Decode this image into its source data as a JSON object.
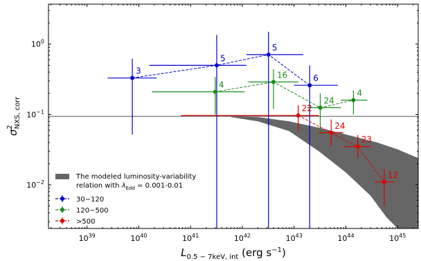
{
  "chart_data": {
    "type": "scatter",
    "xlabel": "L",
    "xlabel_subscript": "0.5 − 7keV, int",
    "xlabel_unit": " (erg s",
    "xlabel_unit_sup": "−1",
    "xlabel_unit_end": ")",
    "ylabel": "σ",
    "ylabel_sup": "2",
    "ylabel_sub": "NXS, corr",
    "x_log": true,
    "y_log": true,
    "xlim": [
      1.8e+38,
      2.5e+45
    ],
    "ylim": [
      0.0024,
      3.7
    ],
    "x_tick_labels": [
      {
        "value": 1e+39,
        "base": "10",
        "exp": "39"
      },
      {
        "value": 1e+40,
        "base": "10",
        "exp": "40"
      },
      {
        "value": 1e+41,
        "base": "10",
        "exp": "41"
      },
      {
        "value": 1e+42,
        "base": "10",
        "exp": "42"
      },
      {
        "value": 1e+43,
        "base": "10",
        "exp": "43"
      },
      {
        "value": 1e+44,
        "base": "10",
        "exp": "44"
      },
      {
        "value": 1e+45,
        "base": "10",
        "exp": "45"
      }
    ],
    "y_tick_labels": [
      {
        "value": 0.01,
        "base": "10",
        "exp": "−2"
      },
      {
        "value": 0.1,
        "base": "10",
        "exp": "−1"
      },
      {
        "value": 1,
        "base": "10",
        "exp": "0"
      }
    ],
    "reference_line": {
      "y": 0.094,
      "color": "#555555"
    },
    "model_band": {
      "label_line1": "The modeled luminosity-variability",
      "label_line2_prefix": "relation with ",
      "label_line2_lambda": "λ",
      "label_line2_sub": "Edd",
      "label_line2_suffix": " = 0.001-0.01",
      "color": "#666666",
      "upper": [
        [
          6e+41,
          0.094
        ],
        [
          2e+42,
          0.092
        ],
        [
          8e+42,
          0.08
        ],
        [
          3e+43,
          0.065
        ],
        [
          1e+44,
          0.052
        ],
        [
          4e+44,
          0.04
        ],
        [
          1e+45,
          0.032
        ],
        [
          2.5e+45,
          0.024
        ]
      ],
      "lower": [
        [
          2.5e+45,
          0.0024
        ],
        [
          1e+45,
          0.0024
        ],
        [
          6e+44,
          0.0035
        ],
        [
          3e+44,
          0.007
        ],
        [
          1e+44,
          0.015
        ],
        [
          3e+43,
          0.03
        ],
        [
          8e+42,
          0.058
        ],
        [
          2e+42,
          0.08
        ],
        [
          6e+41,
          0.092
        ]
      ]
    },
    "series": [
      {
        "name": "30−120",
        "color": "#0000cc",
        "points": [
          {
            "x": 7.5e+39,
            "y": 0.33,
            "xlo": 2.5e+39,
            "xhi": 2.2e+40,
            "ylo": 0.052,
            "yhi": 0.62,
            "label": "3"
          },
          {
            "x": 3.2e+41,
            "y": 0.5,
            "xlo": 1.6e+40,
            "xhi": 1.2e+42,
            "ylo": 0.0024,
            "yhi": 1.35,
            "label": "5"
          },
          {
            "x": 3.2e+42,
            "y": 0.71,
            "xlo": 1.2e+42,
            "xhi": 1.5e+43,
            "ylo": 0.0024,
            "yhi": 1.5,
            "label": "5"
          },
          {
            "x": 2e+43,
            "y": 0.26,
            "xlo": 1e+43,
            "xhi": 7e+43,
            "ylo": 0.0024,
            "yhi": 0.5,
            "label": "6"
          }
        ]
      },
      {
        "name": "120−500",
        "color": "#1a8a1a",
        "points": [
          {
            "x": 3e+41,
            "y": 0.21,
            "xlo": 1.8e+40,
            "xhi": 1.1e+42,
            "ylo": 0.1,
            "yhi": 0.34,
            "label": "4"
          },
          {
            "x": 4e+42,
            "y": 0.29,
            "xlo": 1.3e+42,
            "xhi": 1.2e+43,
            "ylo": 0.12,
            "yhi": 0.44,
            "label": "16"
          },
          {
            "x": 3.2e+43,
            "y": 0.125,
            "xlo": 1.8e+43,
            "xhi": 8e+43,
            "ylo": 0.053,
            "yhi": 0.2,
            "label": "24"
          },
          {
            "x": 1.4e+44,
            "y": 0.16,
            "xlo": 8e+43,
            "xhi": 2.6e+44,
            "ylo": 0.1,
            "yhi": 0.22,
            "label": "4"
          }
        ]
      },
      {
        "name": ">500",
        "color": "#dd0000",
        "points": [
          {
            "x": 1.2e+43,
            "y": 0.097,
            "xlo": 6.5e+40,
            "xhi": 3e+43,
            "ylo": 0.058,
            "yhi": 0.135,
            "label": "22"
          },
          {
            "x": 5.2e+43,
            "y": 0.055,
            "xlo": 3e+43,
            "xhi": 9e+43,
            "ylo": 0.035,
            "yhi": 0.085,
            "label": "24"
          },
          {
            "x": 1.7e+44,
            "y": 0.035,
            "xlo": 9e+43,
            "xhi": 3e+44,
            "ylo": 0.024,
            "yhi": 0.051,
            "label": "23"
          },
          {
            "x": 5.5e+44,
            "y": 0.011,
            "xlo": 3.6e+44,
            "xhi": 9e+44,
            "ylo": 0.005,
            "yhi": 0.017,
            "label": "12"
          }
        ]
      }
    ]
  }
}
